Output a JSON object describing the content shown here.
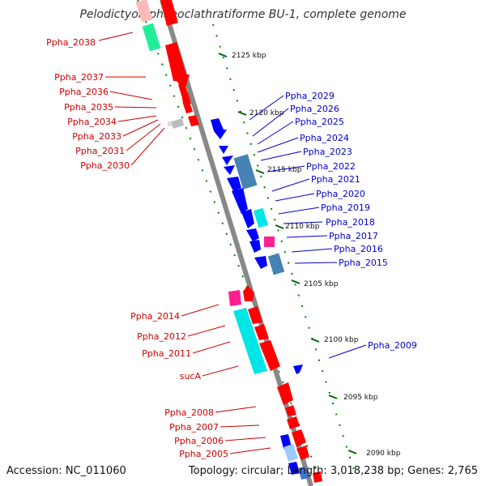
{
  "title": "Pelodictyon phaeoclathratiforme BU-1, complete genome",
  "footer": {
    "accession": "Accession: NC_011060",
    "topology": "Topology: circular; Length: 3,018,238 bp; Genes: 2,765"
  },
  "ticks": [
    "2125 kbp",
    "2120 kbp",
    "2115 kbp",
    "2110 kbp",
    "2105 kbp",
    "2100 kbp",
    "2095 kbp",
    "2090 kbp"
  ],
  "labels_left": [
    "Ppha_2038",
    "Ppha_2037",
    "Ppha_2036",
    "Ppha_2035",
    "Ppha_2034",
    "Ppha_2033",
    "Ppha_2031",
    "Ppha_2030",
    "Ppha_2014",
    "Ppha_2012",
    "Ppha_2011",
    "sucA",
    "Ppha_2008",
    "Ppha_2007",
    "Ppha_2006",
    "Ppha_2005"
  ],
  "labels_right": [
    "Ppha_2029",
    "Ppha_2026",
    "Ppha_2025",
    "Ppha_2024",
    "Ppha_2023",
    "Ppha_2022",
    "Ppha_2021",
    "Ppha_2020",
    "Ppha_2019",
    "Ppha_2018",
    "Ppha_2017",
    "Ppha_2016",
    "Ppha_2015",
    "Ppha_2009"
  ],
  "colors": {
    "forward_gene": "#ff0000",
    "reverse_gene": "#0000ff",
    "rna_gene": "#ff1f8f",
    "other_feature": "#00e5e5",
    "tick_marks": "#008000",
    "backbone": "#888888"
  }
}
